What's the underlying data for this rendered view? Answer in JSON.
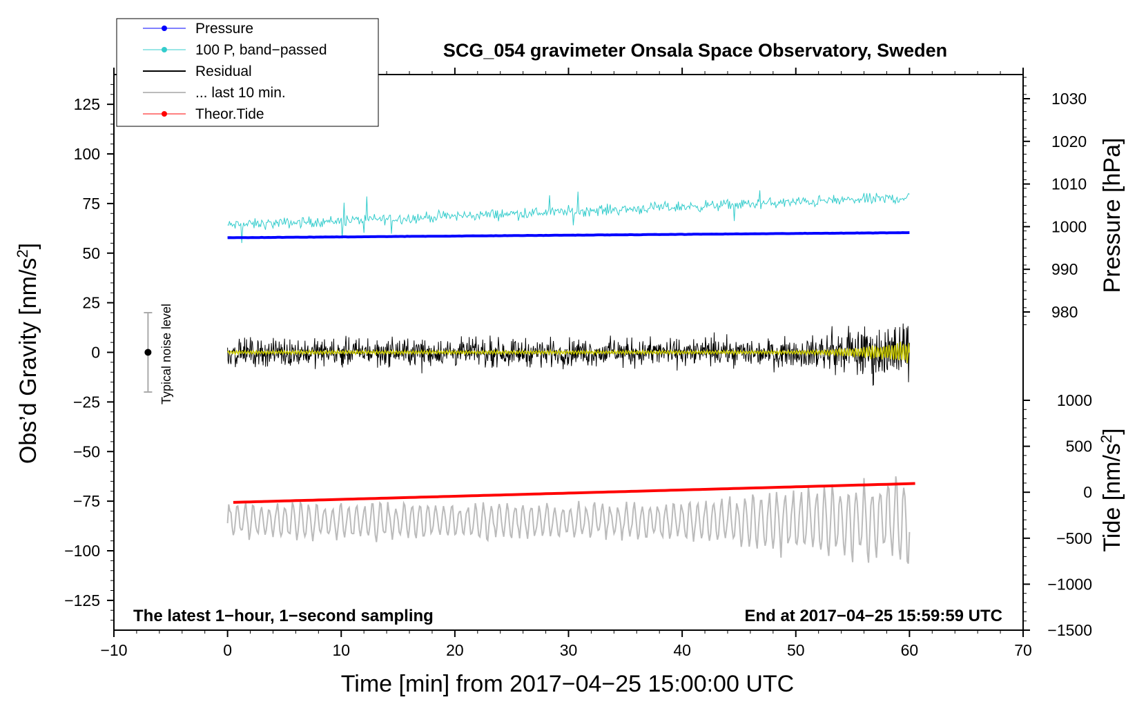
{
  "chart_data": {
    "type": "line",
    "title": "SCG_054 gravimeter Onsala Space Observatory, Sweden",
    "xlabel": "Time [min] from 2017−04−25 15:00:00 UTC",
    "ylabel_left_base": "Obs’d Gravity [nm/s",
    "ylabel_left_sup": "2",
    "ylabel_left_end": "]",
    "ylabel_right_pressure": "Pressure [hPa]",
    "ylabel_right_tide_base": "Tide [nm/s",
    "ylabel_right_tide_sup": "2",
    "ylabel_right_tide_end": "]",
    "xlim": [
      -10,
      70
    ],
    "ylim_left": [
      -140,
      140
    ],
    "x_ticks": [
      "−10",
      "0",
      "10",
      "20",
      "30",
      "40",
      "50",
      "60",
      "70"
    ],
    "y_left_ticks": [
      "125",
      "100",
      "75",
      "50",
      "25",
      "0",
      "−25",
      "−50",
      "−75",
      "−100",
      "−125"
    ],
    "pressure_ticks": [
      "1030",
      "1020",
      "1010",
      "1000",
      "990",
      "980"
    ],
    "tide_ticks": [
      "1000",
      "500",
      "0",
      "−500",
      "−1000",
      "−1500"
    ],
    "annotation_left": "The latest 1−hour, 1−second sampling",
    "annotation_right": "End at 2017−04−25 15:59:59 UTC",
    "noise_label": "Typical noise level",
    "noise_range": [
      -20,
      20
    ],
    "legend": [
      {
        "label": "Pressure",
        "color": "#0000ff",
        "marker": true
      },
      {
        "label": "100 P, band−passed",
        "color": "#33cccc",
        "marker": true
      },
      {
        "label": "Residual",
        "color": "#000000",
        "marker": false
      },
      {
        "label": "... last 10 min.",
        "color": "#bbbbbb",
        "marker": false
      },
      {
        "label": "Theor.Tide",
        "color": "#ff0000",
        "marker": true
      }
    ],
    "series": [
      {
        "name": "Pressure",
        "axis": "pressure_hPa",
        "x": [
          0,
          60
        ],
        "values": [
          997.4,
          998.6
        ],
        "color": "#0000ff"
      },
      {
        "name": "100 P, band−passed",
        "axis": "gravity_nm_s2",
        "x": [
          0,
          60
        ],
        "values": [
          64,
          78
        ],
        "noise": 4,
        "color": "#33cccc"
      },
      {
        "name": "Residual",
        "axis": "gravity_nm_s2",
        "x": [
          0,
          60
        ],
        "values": [
          0,
          0
        ],
        "envelope_start": 10,
        "envelope_end": 25,
        "color": "#000000"
      },
      {
        "name": "Residual (smoothed)",
        "axis": "gravity_nm_s2",
        "x": [
          0,
          60
        ],
        "values": [
          0,
          0
        ],
        "envelope_start": 1,
        "envelope_end": 6,
        "color": "#cccc00"
      },
      {
        "name": "... last 10 min.",
        "axis": "gravity_nm_s2",
        "x": [
          0,
          60
        ],
        "values": [
          -85,
          -85
        ],
        "envelope_start": 10,
        "envelope_end": 25,
        "color": "#bbbbbb"
      },
      {
        "name": "Theor.Tide",
        "axis": "tide_nm_s2",
        "x": [
          0.5,
          60.5
        ],
        "values": [
          -110,
          95
        ],
        "color": "#ff0000"
      }
    ],
    "colors": {
      "pressure": "#0000ff",
      "bandpassed": "#33cccc",
      "residual": "#000000",
      "smoothed": "#cccc00",
      "last10": "#bbbbbb",
      "tide": "#ff0000",
      "noise_bar": "#aaaaaa"
    }
  }
}
